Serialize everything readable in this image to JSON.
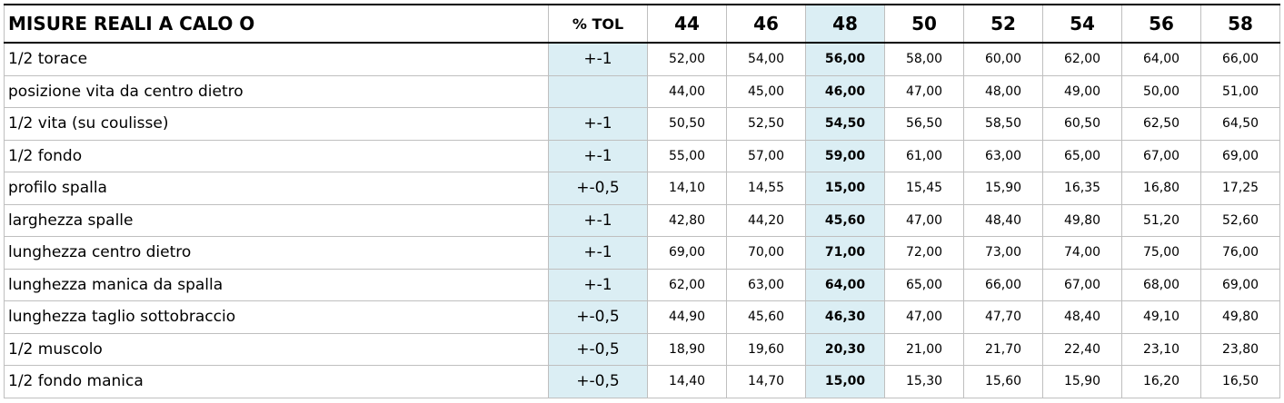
{
  "table": {
    "header": {
      "title": "MISURE REALI A CALO O",
      "tol": "% TOL",
      "sizes": [
        "44",
        "46",
        "48",
        "50",
        "52",
        "54",
        "56",
        "58"
      ]
    },
    "rows": [
      {
        "label": "1/2 torace",
        "tol": "+-1",
        "values": [
          "52,00",
          "54,00",
          "56,00",
          "58,00",
          "60,00",
          "62,00",
          "64,00",
          "66,00"
        ]
      },
      {
        "label": "posizione vita da centro dietro",
        "tol": null,
        "values": [
          "44,00",
          "45,00",
          "46,00",
          "47,00",
          "48,00",
          "49,00",
          "50,00",
          "51,00"
        ]
      },
      {
        "label": "1/2 vita (su coulisse)",
        "tol": "+-1",
        "values": [
          "50,50",
          "52,50",
          "54,50",
          "56,50",
          "58,50",
          "60,50",
          "62,50",
          "64,50"
        ]
      },
      {
        "label": "1/2 fondo",
        "tol": "+-1",
        "values": [
          "55,00",
          "57,00",
          "59,00",
          "61,00",
          "63,00",
          "65,00",
          "67,00",
          "69,00"
        ]
      },
      {
        "label": "profilo spalla",
        "tol": "+-0,5",
        "values": [
          "14,10",
          "14,55",
          "15,00",
          "15,45",
          "15,90",
          "16,35",
          "16,80",
          "17,25"
        ]
      },
      {
        "label": "larghezza spalle",
        "tol": "+-1",
        "values": [
          "42,80",
          "44,20",
          "45,60",
          "47,00",
          "48,40",
          "49,80",
          "51,20",
          "52,60"
        ]
      },
      {
        "label": "lunghezza centro dietro",
        "tol": "+-1",
        "values": [
          "69,00",
          "70,00",
          "71,00",
          "72,00",
          "73,00",
          "74,00",
          "75,00",
          "76,00"
        ]
      },
      {
        "label": "lunghezza manica da spalla",
        "tol": "+-1",
        "values": [
          "62,00",
          "63,00",
          "64,00",
          "65,00",
          "66,00",
          "67,00",
          "68,00",
          "69,00"
        ]
      },
      {
        "label": "lunghezza taglio sottobraccio",
        "tol": "+-0,5",
        "values": [
          "44,90",
          "45,60",
          "46,30",
          "47,00",
          "47,70",
          "48,40",
          "49,10",
          "49,80"
        ]
      },
      {
        "label": "1/2 muscolo",
        "tol": "+-0,5",
        "values": [
          "18,90",
          "19,60",
          "20,30",
          "21,00",
          "21,70",
          "22,40",
          "23,10",
          "23,80"
        ]
      },
      {
        "label": "1/2 fondo manica",
        "tol": "+-0,5",
        "values": [
          "14,40",
          "14,70",
          "15,00",
          "15,30",
          "15,60",
          "15,90",
          "16,20",
          "16,50"
        ]
      }
    ],
    "highlight_size": "48"
  }
}
